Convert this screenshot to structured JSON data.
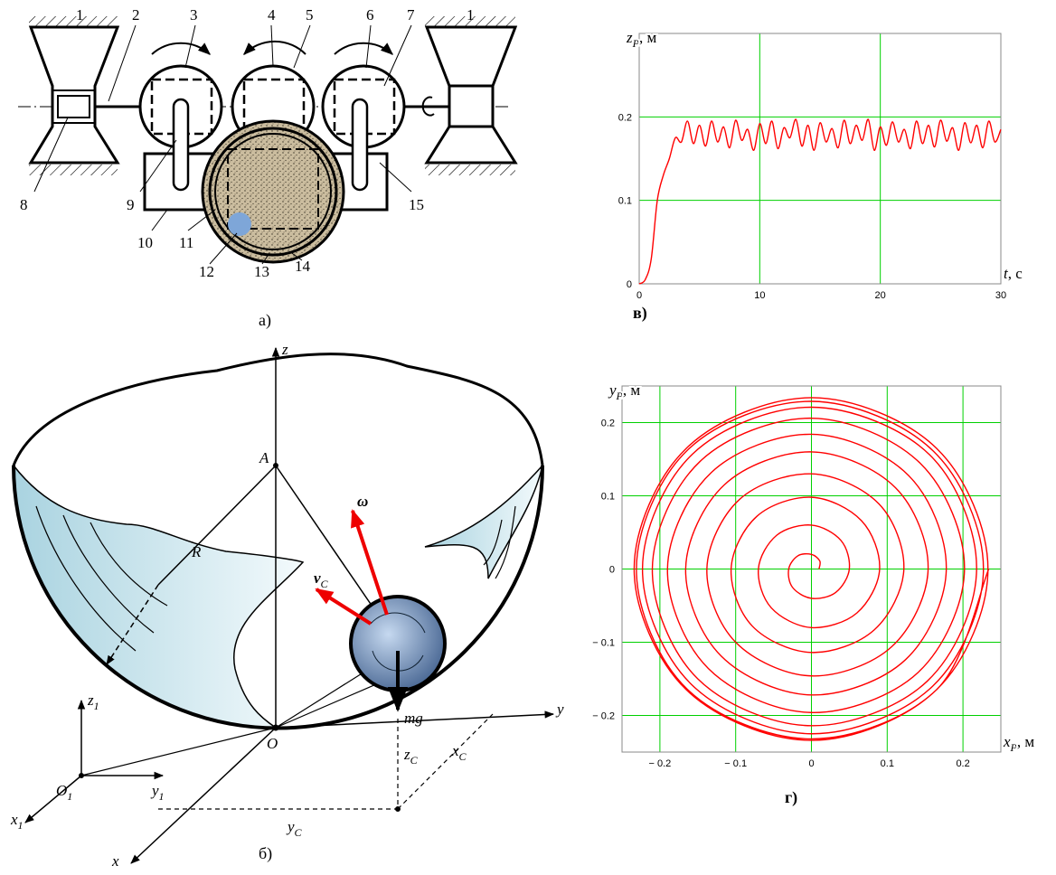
{
  "diagram_a": {
    "caption": "а)",
    "labels": [
      "1",
      "2",
      "3",
      "4",
      "5",
      "6",
      "7",
      "1",
      "8",
      "9",
      "10",
      "11",
      "12",
      "13",
      "14",
      "15"
    ]
  },
  "diagram_b": {
    "caption": "б)",
    "labels": [
      {
        "main": "z"
      },
      {
        "main": "A"
      },
      {
        "main": "R"
      },
      {
        "main": "ω"
      },
      {
        "main": "v",
        "sub": "C"
      },
      {
        "main": "mg"
      },
      {
        "main": "y"
      },
      {
        "main": "O"
      },
      {
        "main": "z",
        "sub": "C"
      },
      {
        "main": "x",
        "sub": "C"
      },
      {
        "main": "y",
        "sub": "C"
      },
      {
        "main": "x"
      },
      {
        "main": "z",
        "sub": "1"
      },
      {
        "main": "O",
        "sub": "1"
      },
      {
        "main": "y",
        "sub": "1"
      },
      {
        "main": "x",
        "sub": "1"
      }
    ]
  },
  "chart_data": [
    {
      "type": "line",
      "caption": "в)",
      "ylabel": {
        "symbol": "z",
        "sub": "P",
        "unit": ", м"
      },
      "xlabel": {
        "symbol": "t",
        "unit": ", с"
      },
      "color": "#ff0000",
      "grid": true,
      "grid_color": "#00d000",
      "xlim": [
        0,
        30
      ],
      "xticks": [
        0,
        10,
        20,
        30
      ],
      "ylim": [
        0,
        0.3
      ],
      "yticks": [
        0,
        0.1,
        0.2
      ],
      "x": [
        0,
        0.5,
        1,
        1.5,
        2,
        2.5,
        3,
        3.5,
        4,
        4.5,
        5,
        5.5,
        6,
        6.5,
        7,
        7.5,
        8,
        8.5,
        9,
        9.5,
        10,
        10.5,
        11,
        11.5,
        12,
        12.5,
        13,
        13.5,
        14,
        14.5,
        15,
        15.5,
        16,
        16.5,
        17,
        17.5,
        18,
        18.5,
        19,
        19.5,
        20,
        20.5,
        21,
        21.5,
        22,
        22.5,
        23,
        23.5,
        24,
        24.5,
        25,
        25.5,
        26,
        26.5,
        27,
        27.5,
        28,
        28.5,
        29,
        29.5,
        30
      ],
      "values": [
        0,
        0.005,
        0.03,
        0.1,
        0.13,
        0.15,
        0.175,
        0.17,
        0.195,
        0.168,
        0.19,
        0.165,
        0.195,
        0.17,
        0.188,
        0.163,
        0.196,
        0.172,
        0.185,
        0.16,
        0.192,
        0.168,
        0.195,
        0.162,
        0.187,
        0.175,
        0.197,
        0.165,
        0.19,
        0.16,
        0.193,
        0.17,
        0.186,
        0.163,
        0.196,
        0.168,
        0.19,
        0.172,
        0.197,
        0.16,
        0.188,
        0.166,
        0.194,
        0.17,
        0.185,
        0.162,
        0.195,
        0.168,
        0.19,
        0.164,
        0.196,
        0.171,
        0.187,
        0.16,
        0.193,
        0.169,
        0.19,
        0.163,
        0.195,
        0.17,
        0.185
      ]
    },
    {
      "type": "line",
      "caption": "г)",
      "ylabel": {
        "symbol": "y",
        "sub": "P",
        "unit": ", м"
      },
      "xlabel": {
        "symbol": "x",
        "sub": "P",
        "unit": ", м"
      },
      "color": "#ff0000",
      "grid": true,
      "grid_color": "#00d000",
      "xlim": [
        -0.25,
        0.25
      ],
      "xticks": [
        {
          "value": -0.2,
          "label": "− 0.2"
        },
        {
          "value": -0.1,
          "label": "− 0.1"
        },
        0,
        0.1,
        0.2
      ],
      "ylim": [
        -0.25,
        0.25
      ],
      "yticks": [
        {
          "value": -0.2,
          "label": "− 0.2"
        },
        {
          "value": -0.1,
          "label": "− 0.1"
        },
        0,
        0.1,
        0.2
      ],
      "x": [
        0.01,
        0.011,
        0,
        -0.018,
        -0.03,
        -0.025,
        0,
        0.032,
        0.05,
        0.039,
        0,
        -0.046,
        -0.07,
        -0.053,
        0,
        0.06,
        0.09,
        0.066,
        0,
        -0.072,
        -0.106,
        -0.078,
        0,
        0.083,
        0.122,
        0.089,
        0,
        -0.095,
        -0.138,
        -0.1,
        0,
        0.106,
        0.154,
        0.111,
        0,
        -0.115,
        -0.166,
        -0.119,
        0,
        0.124,
        0.178,
        0.128,
        0,
        -0.132,
        -0.19,
        -0.136,
        0,
        0.141,
        0.202,
        0.144,
        0,
        -0.147,
        -0.21,
        -0.15,
        0,
        0.153,
        0.218,
        0.156,
        0,
        -0.157,
        -0.223,
        -0.158,
        0,
        0.16,
        0.227,
        0.161,
        0,
        -0.163,
        -0.231,
        -0.164,
        0,
        0.165,
        0.233,
        0.165,
        0,
        -0.165,
        -0.234,
        -0.165,
        0,
        0.165,
        0.234
      ],
      "values": [
        0,
        0.011,
        0.02,
        0.018,
        0,
        -0.025,
        -0.04,
        -0.032,
        0,
        0.039,
        0.06,
        0.046,
        0,
        -0.053,
        -0.08,
        -0.06,
        0,
        0.066,
        0.098,
        0.072,
        0,
        -0.078,
        -0.114,
        -0.083,
        0,
        0.089,
        0.13,
        0.095,
        0,
        -0.1,
        -0.146,
        -0.106,
        0,
        0.111,
        0.16,
        0.115,
        0,
        -0.119,
        -0.172,
        -0.124,
        0,
        0.128,
        0.184,
        0.132,
        0,
        -0.136,
        -0.196,
        -0.141,
        0,
        0.144,
        0.206,
        0.147,
        0,
        -0.15,
        -0.214,
        -0.153,
        0,
        0.156,
        0.221,
        0.157,
        0,
        -0.158,
        -0.225,
        -0.16,
        0,
        0.161,
        0.229,
        0.163,
        0,
        -0.164,
        -0.232,
        -0.165,
        0,
        0.165,
        0.234,
        0.165,
        0,
        -0.165,
        -0.234,
        -0.165,
        0
      ]
    }
  ]
}
